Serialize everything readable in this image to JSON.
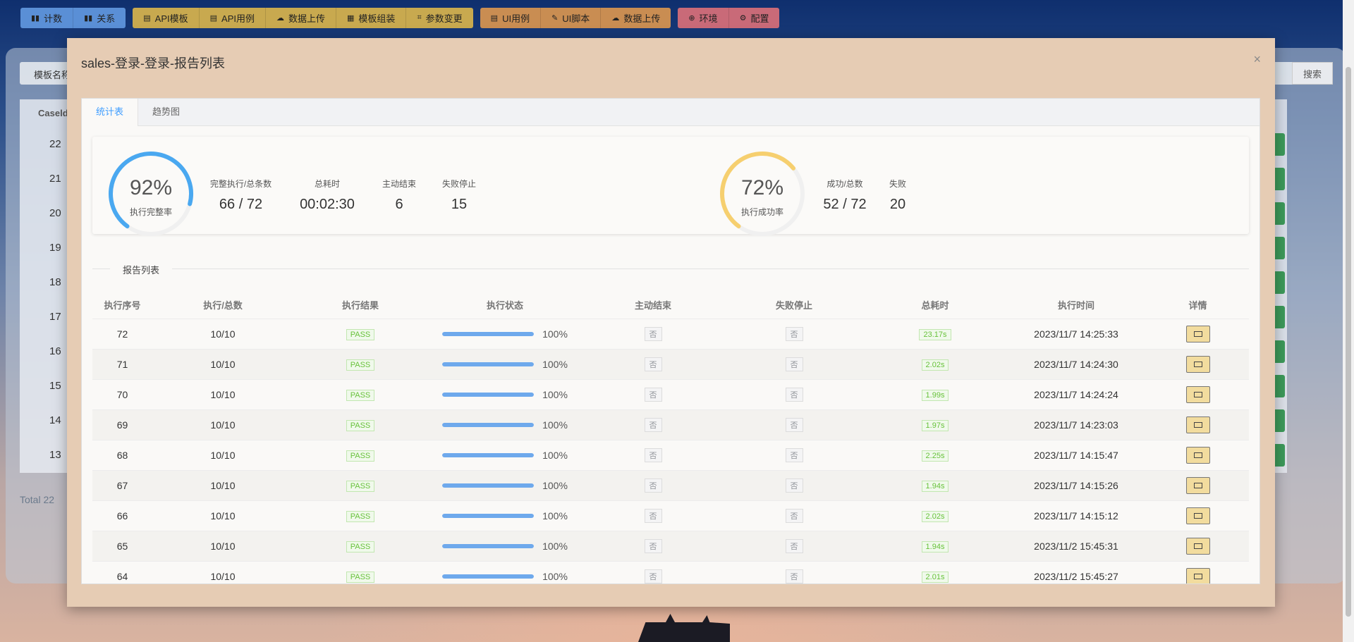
{
  "toolbar": {
    "group1": [
      {
        "label": "计数",
        "icon": "bar-chart-icon"
      },
      {
        "label": "关系",
        "icon": "bar-chart-icon"
      }
    ],
    "group2": [
      {
        "label": "API模板",
        "icon": "clipboard-icon"
      },
      {
        "label": "API用例",
        "icon": "clipboard-icon"
      },
      {
        "label": "数据上传",
        "icon": "cloud-upload-icon"
      },
      {
        "label": "模板组装",
        "icon": "grid-icon"
      },
      {
        "label": "参数变更",
        "icon": "crop-icon"
      }
    ],
    "group3": [
      {
        "label": "UI用例",
        "icon": "clipboard-icon"
      },
      {
        "label": "UI脚本",
        "icon": "edit-icon"
      },
      {
        "label": "数据上传",
        "icon": "cloud-upload-icon"
      }
    ],
    "group4": [
      {
        "label": "环境",
        "icon": "plus-circle-icon"
      },
      {
        "label": "配置",
        "icon": "gear-icon"
      }
    ]
  },
  "background": {
    "search_label": "模板名称",
    "search_button": "搜索",
    "table_header": "Caseld",
    "row_ids": [
      "22",
      "21",
      "20",
      "19",
      "18",
      "17",
      "16",
      "15",
      "14",
      "13"
    ],
    "total": "Total 22"
  },
  "modal": {
    "title": "sales-登录-登录-报告列表",
    "close": "×",
    "tabs": [
      "统计表",
      "趋势图"
    ],
    "stats": {
      "completion": {
        "percent_text": "92%",
        "percent": 92,
        "label": "执行完整率",
        "color": "#4aa8f0"
      },
      "success": {
        "percent_text": "72%",
        "percent": 72,
        "label": "执行成功率",
        "color": "#f6cf6f"
      },
      "items": [
        {
          "key": "完整执行/总条数",
          "value": "66 / 72"
        },
        {
          "key": "总耗时",
          "value": "00:02:30"
        },
        {
          "key": "主动结束",
          "value": "6"
        },
        {
          "key": "失败停止",
          "value": "15"
        }
      ],
      "items2": [
        {
          "key": "成功/总数",
          "value": "52 / 72"
        },
        {
          "key": "失败",
          "value": "20"
        }
      ]
    },
    "section_title": "报告列表",
    "table": {
      "headers": [
        "执行序号",
        "执行/总数",
        "执行结果",
        "执行状态",
        "主动结束",
        "失败停止",
        "总耗时",
        "执行时间",
        "详情"
      ],
      "rows": [
        {
          "seq": "72",
          "count": "10/10",
          "result": "PASS",
          "progress": 100,
          "progress_text": "100%",
          "manual_end": "否",
          "fail_stop": "否",
          "duration": "23.17s",
          "time": "2023/11/7 14:25:33"
        },
        {
          "seq": "71",
          "count": "10/10",
          "result": "PASS",
          "progress": 100,
          "progress_text": "100%",
          "manual_end": "否",
          "fail_stop": "否",
          "duration": "2.02s",
          "time": "2023/11/7 14:24:30"
        },
        {
          "seq": "70",
          "count": "10/10",
          "result": "PASS",
          "progress": 100,
          "progress_text": "100%",
          "manual_end": "否",
          "fail_stop": "否",
          "duration": "1.99s",
          "time": "2023/11/7 14:24:24"
        },
        {
          "seq": "69",
          "count": "10/10",
          "result": "PASS",
          "progress": 100,
          "progress_text": "100%",
          "manual_end": "否",
          "fail_stop": "否",
          "duration": "1.97s",
          "time": "2023/11/7 14:23:03"
        },
        {
          "seq": "68",
          "count": "10/10",
          "result": "PASS",
          "progress": 100,
          "progress_text": "100%",
          "manual_end": "否",
          "fail_stop": "否",
          "duration": "2.25s",
          "time": "2023/11/7 14:15:47"
        },
        {
          "seq": "67",
          "count": "10/10",
          "result": "PASS",
          "progress": 100,
          "progress_text": "100%",
          "manual_end": "否",
          "fail_stop": "否",
          "duration": "1.94s",
          "time": "2023/11/7 14:15:26"
        },
        {
          "seq": "66",
          "count": "10/10",
          "result": "PASS",
          "progress": 100,
          "progress_text": "100%",
          "manual_end": "否",
          "fail_stop": "否",
          "duration": "2.02s",
          "time": "2023/11/7 14:15:12"
        },
        {
          "seq": "65",
          "count": "10/10",
          "result": "PASS",
          "progress": 100,
          "progress_text": "100%",
          "manual_end": "否",
          "fail_stop": "否",
          "duration": "1.94s",
          "time": "2023/11/2 15:45:31"
        },
        {
          "seq": "64",
          "count": "10/10",
          "result": "PASS",
          "progress": 100,
          "progress_text": "100%",
          "manual_end": "否",
          "fail_stop": "否",
          "duration": "2.01s",
          "time": "2023/11/2 15:45:27"
        }
      ]
    }
  }
}
